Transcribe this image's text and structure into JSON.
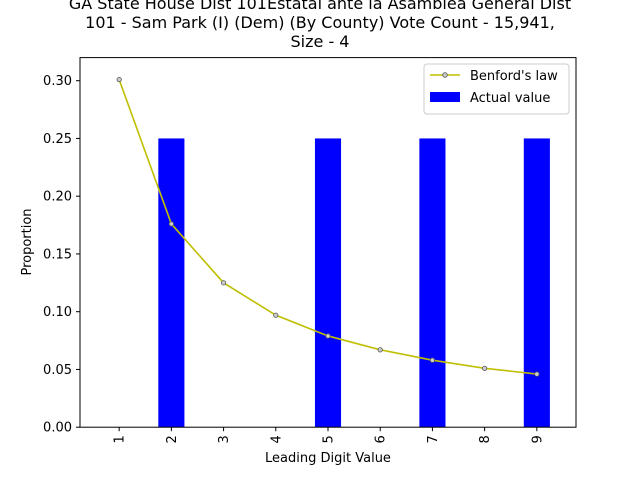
{
  "chart_data": {
    "type": "bar",
    "title_lines": [
      "GA State House Dist 101Estatal ante la Asamblea General Dist",
      "101 - Sam Park (I) (Dem) (By County) Vote Count - 15,941,",
      "Size - 4"
    ],
    "xlabel": "Leading Digit Value",
    "ylabel": "Proportion",
    "categories": [
      "1",
      "2",
      "3",
      "4",
      "5",
      "6",
      "7",
      "8",
      "9"
    ],
    "ylim": [
      0,
      0.32
    ],
    "yticks": [
      "0.00",
      "0.05",
      "0.10",
      "0.15",
      "0.20",
      "0.25",
      "0.30"
    ],
    "series": [
      {
        "name": "Benford's law",
        "type": "line",
        "color": "#bfbf00",
        "values": [
          0.301,
          0.176,
          0.125,
          0.097,
          0.079,
          0.067,
          0.058,
          0.051,
          0.046
        ]
      },
      {
        "name": "Actual value",
        "type": "bar",
        "color": "#0000ff",
        "values": [
          0,
          0.25,
          0,
          0,
          0.25,
          0,
          0.25,
          0,
          0.25
        ]
      }
    ],
    "legend_position": "top-right",
    "grid": false
  }
}
